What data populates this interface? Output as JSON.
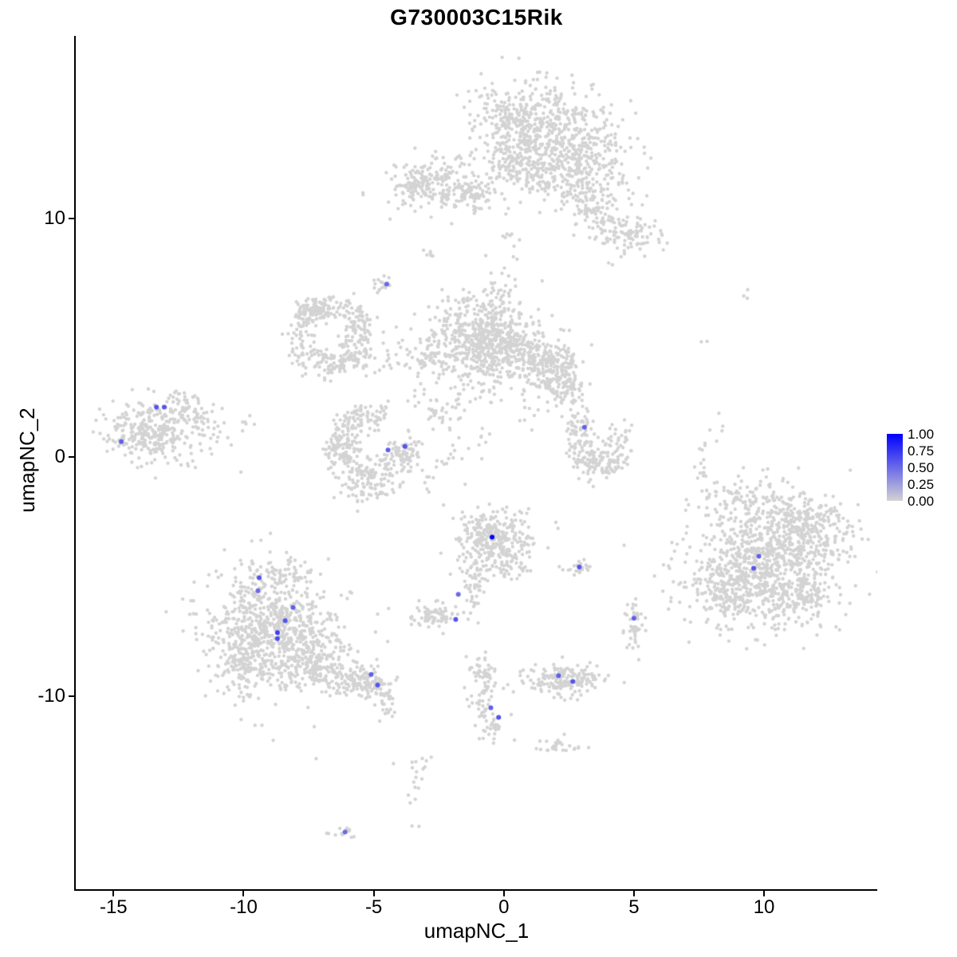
{
  "title": "G730003C15Rik",
  "chart_data": {
    "type": "scatter",
    "subtype": "umap-feature-plot",
    "title": "G730003C15Rik",
    "xlabel": "umapNC_1",
    "ylabel": "umapNC_2",
    "xlim": [
      -16.45,
      14.35
    ],
    "ylim": [
      -18.1,
      17.65
    ],
    "x_ticks": [
      -15,
      -10,
      -5,
      0,
      5,
      10
    ],
    "y_ticks": [
      -10,
      0,
      10
    ],
    "grid": "off",
    "legend": {
      "position": "right",
      "ticks": [
        "1.00",
        "0.75",
        "0.50",
        "0.25",
        "0.00"
      ],
      "low_color": "#d3d3d3",
      "high_color": "#0000ff"
    },
    "point_color_low": "#d3d3d3",
    "background_clusters": [
      {
        "cx": 0.8,
        "cy": 14.3,
        "sx": 1.0,
        "sy": 0.75,
        "n": 260
      },
      {
        "cx": 2.1,
        "cy": 13.4,
        "sx": 1.15,
        "sy": 0.95,
        "n": 380
      },
      {
        "cx": 1.3,
        "cy": 12.0,
        "sx": 0.8,
        "sy": 0.6,
        "n": 140
      },
      {
        "cx": 2.9,
        "cy": 11.3,
        "sx": 0.5,
        "sy": 0.55,
        "n": 70
      },
      {
        "cx": 3.6,
        "cy": 10.5,
        "sx": 0.45,
        "sy": 0.6,
        "n": 70
      },
      {
        "cx": 4.4,
        "cy": 9.6,
        "sx": 0.55,
        "sy": 0.5,
        "n": 60
      },
      {
        "cx": 5.2,
        "cy": 9.2,
        "sx": 0.45,
        "sy": 0.4,
        "n": 45
      },
      {
        "cx": 4.3,
        "cy": 11.5,
        "sx": 0.6,
        "sy": 0.5,
        "n": 30
      },
      {
        "cx": 3.4,
        "cy": 12.6,
        "sx": 0.5,
        "sy": 0.5,
        "n": 40
      },
      {
        "cx": 0.0,
        "cy": 12.6,
        "sx": 0.4,
        "sy": 0.5,
        "n": 50
      },
      {
        "cx": -2.3,
        "cy": 11.4,
        "sx": 1.05,
        "sy": 0.55,
        "n": 230
      },
      {
        "cx": -3.5,
        "cy": 11.5,
        "sx": 0.3,
        "sy": 0.25,
        "n": 35
      },
      {
        "cx": -1.0,
        "cy": 11.0,
        "sx": 0.3,
        "sy": 0.3,
        "n": 30
      },
      {
        "cx": 0.2,
        "cy": 8.8,
        "sx": 0.2,
        "sy": 0.7,
        "n": 15
      },
      {
        "cx": -2.9,
        "cy": 8.5,
        "sx": 0.15,
        "sy": 0.12,
        "n": 6
      },
      {
        "cx": -1.1,
        "cy": 5.1,
        "sx": 1.0,
        "sy": 0.85,
        "n": 420
      },
      {
        "cx": 0.2,
        "cy": 4.5,
        "sx": 0.8,
        "sy": 0.7,
        "n": 260
      },
      {
        "cx": 1.7,
        "cy": 3.9,
        "sx": 0.6,
        "sy": 0.6,
        "n": 190
      },
      {
        "cx": 2.3,
        "cy": 3.0,
        "sx": 0.4,
        "sy": 0.5,
        "n": 90
      },
      {
        "cx": -2.6,
        "cy": 4.4,
        "sx": 0.5,
        "sy": 0.4,
        "n": 45
      },
      {
        "cx": -1.3,
        "cy": 2.6,
        "sx": 0.6,
        "sy": 0.5,
        "n": 35
      },
      {
        "cx": -2.4,
        "cy": 1.9,
        "sx": 0.4,
        "sy": 0.4,
        "n": 25
      },
      {
        "cx": -0.2,
        "cy": 6.6,
        "sx": 0.4,
        "sy": 0.4,
        "n": 40
      },
      {
        "shape": "arc",
        "cx": -6.7,
        "cy": 5.0,
        "r": 1.25,
        "th": 0.3,
        "a0": 0,
        "a1": 360,
        "n": 250
      },
      {
        "cx": -7.2,
        "cy": 6.2,
        "sx": 0.45,
        "sy": 0.3,
        "n": 50
      },
      {
        "cx": -6.3,
        "cy": 3.9,
        "sx": 0.4,
        "sy": 0.3,
        "n": 40
      },
      {
        "cx": -4.6,
        "cy": 4.2,
        "sx": 0.7,
        "sy": 0.35,
        "n": 35
      },
      {
        "cx": -5.6,
        "cy": 5.6,
        "sx": 0.4,
        "sy": 0.4,
        "n": 30
      },
      {
        "shape": "arc",
        "cx": -5.0,
        "cy": 0.5,
        "r": 1.3,
        "th": 0.32,
        "a0": 70,
        "a1": 345,
        "n": 300
      },
      {
        "cx": -3.8,
        "cy": 0.4,
        "sx": 0.3,
        "sy": 0.3,
        "n": 45
      },
      {
        "cx": -6.4,
        "cy": 0.3,
        "sx": 0.3,
        "sy": 0.4,
        "n": 30
      },
      {
        "cx": -5.3,
        "cy": -1.4,
        "sx": 0.5,
        "sy": 0.3,
        "n": 40
      },
      {
        "cx": -13.4,
        "cy": 1.2,
        "sx": 0.95,
        "sy": 0.7,
        "n": 330
      },
      {
        "cx": -11.7,
        "cy": 1.8,
        "sx": 0.4,
        "sy": 0.3,
        "n": 20
      },
      {
        "cx": -11.2,
        "cy": 0.8,
        "sx": 0.3,
        "sy": 0.3,
        "n": 10
      },
      {
        "cx": -12.3,
        "cy": 2.4,
        "sx": 0.3,
        "sy": 0.25,
        "n": 15
      },
      {
        "cx": 2.9,
        "cy": 1.2,
        "sx": 0.3,
        "sy": 0.4,
        "n": 45
      },
      {
        "cx": 3.2,
        "cy": 0.3,
        "sx": 0.35,
        "sy": 0.4,
        "n": 55
      },
      {
        "cx": 3.7,
        "cy": -0.3,
        "sx": 0.5,
        "sy": 0.3,
        "n": 65
      },
      {
        "cx": 4.3,
        "cy": 0.2,
        "sx": 0.3,
        "sy": 0.4,
        "n": 35
      },
      {
        "cx": 4.5,
        "cy": 1.0,
        "sx": 0.25,
        "sy": 0.3,
        "n": 20
      },
      {
        "cx": -0.4,
        "cy": -3.4,
        "sx": 0.7,
        "sy": 0.6,
        "n": 300
      },
      {
        "cx": -1.0,
        "cy": -4.8,
        "sx": 0.3,
        "sy": 0.45,
        "n": 45
      },
      {
        "cx": -1.2,
        "cy": -6.0,
        "sx": 0.15,
        "sy": 0.4,
        "n": 18
      },
      {
        "cx": 0.4,
        "cy": -4.4,
        "sx": 0.35,
        "sy": 0.35,
        "n": 40
      },
      {
        "cx": -2.7,
        "cy": -6.6,
        "sx": 0.45,
        "sy": 0.28,
        "n": 75
      },
      {
        "cx": -8.8,
        "cy": -7.3,
        "sx": 1.25,
        "sy": 1.25,
        "n": 700
      },
      {
        "cx": -10.0,
        "cy": -8.3,
        "sx": 0.65,
        "sy": 0.75,
        "n": 150
      },
      {
        "cx": -7.2,
        "cy": -8.6,
        "sx": 0.65,
        "sy": 0.55,
        "n": 150
      },
      {
        "cx": -5.8,
        "cy": -9.3,
        "sx": 0.5,
        "sy": 0.35,
        "n": 90
      },
      {
        "cx": -5.0,
        "cy": -9.6,
        "sx": 0.35,
        "sy": 0.3,
        "n": 60
      },
      {
        "cx": -8.7,
        "cy": -5.0,
        "sx": 0.65,
        "sy": 0.4,
        "n": 60
      },
      {
        "cx": -4.5,
        "cy": -10.3,
        "sx": 0.25,
        "sy": 0.4,
        "n": 25
      },
      {
        "cx": -9.9,
        "cy": -5.9,
        "sx": 0.3,
        "sy": 0.3,
        "n": 25
      },
      {
        "cx": -0.7,
        "cy": -9.9,
        "sx": 0.25,
        "sy": 0.85,
        "n": 65
      },
      {
        "cx": -0.9,
        "cy": -9.0,
        "sx": 0.3,
        "sy": 0.25,
        "n": 25
      },
      {
        "cx": -0.3,
        "cy": -11.3,
        "sx": 0.2,
        "sy": 0.4,
        "n": 20
      },
      {
        "cx": 2.4,
        "cy": -9.3,
        "sx": 0.75,
        "sy": 0.33,
        "n": 170
      },
      {
        "cx": 2.9,
        "cy": -4.65,
        "sx": 0.3,
        "sy": 0.14,
        "n": 25
      },
      {
        "cx": 10.0,
        "cy": -4.3,
        "sx": 1.5,
        "sy": 1.4,
        "n": 850
      },
      {
        "cx": 11.6,
        "cy": -3.0,
        "sx": 0.8,
        "sy": 0.7,
        "n": 220
      },
      {
        "cx": 8.8,
        "cy": -5.6,
        "sx": 0.6,
        "sy": 0.6,
        "n": 130
      },
      {
        "cx": 11.2,
        "cy": -5.9,
        "sx": 0.7,
        "sy": 0.5,
        "n": 130
      },
      {
        "cx": 9.7,
        "cy": -1.9,
        "sx": 0.8,
        "sy": 0.35,
        "n": 50
      },
      {
        "cx": 7.7,
        "cy": -0.4,
        "sx": 0.15,
        "sy": 0.8,
        "n": 22
      },
      {
        "cx": 9.3,
        "cy": 6.8,
        "sx": 0.12,
        "sy": 0.12,
        "n": 3
      },
      {
        "cx": 7.7,
        "cy": 4.9,
        "sx": 0.1,
        "sy": 0.1,
        "n": 2
      },
      {
        "cx": 8.3,
        "cy": 1.4,
        "sx": 0.1,
        "sy": 0.3,
        "n": 4
      },
      {
        "cx": 5.0,
        "cy": -7.0,
        "sx": 0.18,
        "sy": 0.5,
        "n": 45
      },
      {
        "cx": -4.6,
        "cy": 7.2,
        "sx": 0.25,
        "sy": 0.18,
        "n": 18
      },
      {
        "cx": -6.1,
        "cy": -15.7,
        "sx": 0.25,
        "sy": 0.18,
        "n": 15
      },
      {
        "cx": -3.5,
        "cy": -14.0,
        "sx": 0.3,
        "sy": 0.9,
        "n": 12
      },
      {
        "cx": -3.0,
        "cy": -12.6,
        "sx": 0.2,
        "sy": 0.4,
        "n": 8
      },
      {
        "cx": 2.1,
        "cy": -12.1,
        "sx": 0.4,
        "sy": 0.22,
        "n": 28
      },
      {
        "cx": -2.1,
        "cy": 0.3,
        "sx": 0.5,
        "sy": 0.5,
        "n": 14
      },
      {
        "cx": -2.8,
        "cy": -1.0,
        "sx": 0.3,
        "sy": 0.3,
        "n": 8
      },
      {
        "cx": -3.5,
        "cy": 2.6,
        "sx": 0.4,
        "sy": 0.4,
        "n": 10
      },
      {
        "cx": -9.8,
        "cy": 1.5,
        "sx": 0.3,
        "sy": 0.3,
        "n": 6
      },
      {
        "cx": 0.9,
        "cy": 1.9,
        "sx": 0.25,
        "sy": 0.25,
        "n": 8
      },
      {
        "cx": -0.9,
        "cy": 0.9,
        "sx": 0.3,
        "sy": 0.3,
        "n": 6
      }
    ],
    "expressed_points": [
      {
        "x": -13.35,
        "y": 2.1,
        "value": 0.6
      },
      {
        "x": -13.05,
        "y": 2.1,
        "value": 0.6
      },
      {
        "x": -14.7,
        "y": 0.65,
        "value": 0.55
      },
      {
        "x": -4.5,
        "y": 7.25,
        "value": 0.5
      },
      {
        "x": -4.45,
        "y": 0.3,
        "value": 0.55
      },
      {
        "x": -3.8,
        "y": 0.45,
        "value": 0.6
      },
      {
        "x": 3.1,
        "y": 1.25,
        "value": 0.55
      },
      {
        "x": -0.45,
        "y": -3.35,
        "value": 1.0
      },
      {
        "x": 2.9,
        "y": -4.6,
        "value": 0.6
      },
      {
        "x": -1.75,
        "y": -5.75,
        "value": 0.5
      },
      {
        "x": -1.85,
        "y": -6.8,
        "value": 0.6
      },
      {
        "x": -9.4,
        "y": -5.05,
        "value": 0.6
      },
      {
        "x": -9.45,
        "y": -5.6,
        "value": 0.5
      },
      {
        "x": -8.1,
        "y": -6.3,
        "value": 0.55
      },
      {
        "x": -8.4,
        "y": -6.85,
        "value": 0.6
      },
      {
        "x": -8.7,
        "y": -7.35,
        "value": 0.7
      },
      {
        "x": -8.7,
        "y": -7.6,
        "value": 0.65
      },
      {
        "x": -5.1,
        "y": -9.1,
        "value": 0.55
      },
      {
        "x": -4.85,
        "y": -9.55,
        "value": 0.6
      },
      {
        "x": -0.5,
        "y": -10.5,
        "value": 0.55
      },
      {
        "x": -0.2,
        "y": -10.9,
        "value": 0.6
      },
      {
        "x": 2.1,
        "y": -9.15,
        "value": 0.55
      },
      {
        "x": 2.65,
        "y": -9.4,
        "value": 0.6
      },
      {
        "x": 5.0,
        "y": -6.75,
        "value": 0.55
      },
      {
        "x": 9.6,
        "y": -4.65,
        "value": 0.6
      },
      {
        "x": 9.8,
        "y": -4.15,
        "value": 0.55
      },
      {
        "x": -6.1,
        "y": -15.7,
        "value": 0.5
      }
    ]
  }
}
